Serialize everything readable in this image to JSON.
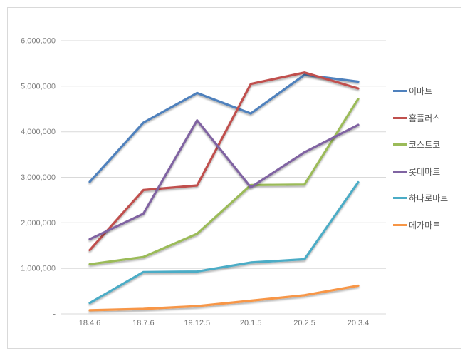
{
  "chart_data": {
    "type": "line",
    "title": "",
    "xlabel": "",
    "ylabel": "",
    "categories": [
      "18.4.6",
      "18.7.6",
      "19.12.5",
      "20.1.5",
      "20.2.5",
      "20.3.4"
    ],
    "series": [
      {
        "name": "이마트",
        "color": "#4F81BD",
        "values": [
          2900000,
          4200000,
          4850000,
          4400000,
          5250000,
          5100000
        ]
      },
      {
        "name": "홈플러스",
        "color": "#C0504D",
        "values": [
          1400000,
          2720000,
          2820000,
          5050000,
          5300000,
          4950000
        ]
      },
      {
        "name": "코스트코",
        "color": "#9BBB59",
        "values": [
          1090000,
          1250000,
          1760000,
          2830000,
          2840000,
          4720000
        ]
      },
      {
        "name": "롯데마트",
        "color": "#8064A2",
        "values": [
          1640000,
          2200000,
          4250000,
          2780000,
          3550000,
          4150000
        ]
      },
      {
        "name": "하나로마트",
        "color": "#4BACC6",
        "values": [
          240000,
          920000,
          930000,
          1130000,
          1200000,
          2890000
        ]
      },
      {
        "name": "메가마트",
        "color": "#F79646",
        "values": [
          80000,
          110000,
          170000,
          290000,
          410000,
          620000
        ]
      }
    ],
    "ylim": [
      0,
      6000000
    ],
    "y_ticks": [
      {
        "value": 0,
        "label": "-"
      },
      {
        "value": 1000000,
        "label": "1,000,000"
      },
      {
        "value": 2000000,
        "label": "2,000,000"
      },
      {
        "value": 3000000,
        "label": "3,000,000"
      },
      {
        "value": 4000000,
        "label": "4,000,000"
      },
      {
        "value": 5000000,
        "label": "5,000,000"
      },
      {
        "value": 6000000,
        "label": "6,000,000"
      }
    ],
    "grid": "horizontal",
    "legend_position": "right"
  },
  "colors": {
    "gridline": "#D9D9D9",
    "frame_border": "#D9D9D9",
    "axis_text": "#7F7F7F",
    "legend_text": "#595959",
    "background": "#FFFFFF"
  }
}
